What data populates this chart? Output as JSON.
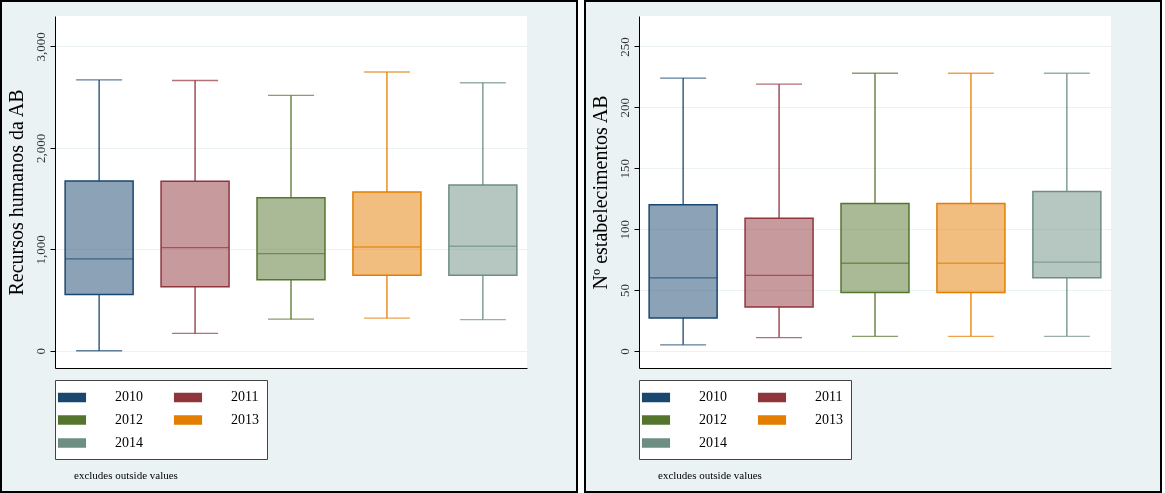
{
  "chart_data": [
    {
      "type": "box",
      "ylabel": "Recursos humanos da AB",
      "categories": [
        null
      ],
      "ylim": [
        -170,
        3300
      ],
      "yticks": [
        0,
        {
          "value": 1000,
          "label": "1,000"
        },
        {
          "value": 2000,
          "label": "2,000"
        },
        {
          "value": 3000,
          "label": "3,000"
        }
      ],
      "grid": "y",
      "legend": "bottom",
      "annotations": [
        "excludes outside values"
      ],
      "series": [
        {
          "name": "2010",
          "color": "#1a476f",
          "boxes": [
            {
              "low": 0,
              "q1": 555,
              "median": 906,
              "q3": 1673,
              "high": 2670
            }
          ]
        },
        {
          "name": "2011",
          "color": "#90353b",
          "boxes": [
            {
              "low": 172,
              "q1": 632,
              "median": 1016,
              "q3": 1670,
              "high": 2664
            }
          ]
        },
        {
          "name": "2012",
          "color": "#55752f",
          "boxes": [
            {
              "low": 311,
              "q1": 701,
              "median": 957,
              "q3": 1509,
              "high": 2517
            }
          ]
        },
        {
          "name": "2013",
          "color": "#e37e00",
          "boxes": [
            {
              "low": 322,
              "q1": 745,
              "median": 1023,
              "q3": 1564,
              "high": 2748
            }
          ]
        },
        {
          "name": "2014",
          "color": "#6e8e84",
          "boxes": [
            {
              "low": 307,
              "q1": 745,
              "median": 1030,
              "q3": 1633,
              "high": 2642
            }
          ]
        }
      ]
    },
    {
      "type": "box",
      "ylabel": "Nº estabelecimentos AB",
      "categories": [
        null
      ],
      "ylim": [
        -14,
        275
      ],
      "yticks": [
        0,
        50,
        100,
        150,
        200,
        250
      ],
      "grid": "y",
      "legend": "bottom",
      "annotations": [
        "excludes outside values"
      ],
      "series": [
        {
          "name": "2010",
          "color": "#1a476f",
          "boxes": [
            {
              "low": 5,
              "q1": 27,
              "median": 60,
              "q3": 120,
              "high": 224
            }
          ]
        },
        {
          "name": "2011",
          "color": "#90353b",
          "boxes": [
            {
              "low": 11,
              "q1": 36,
              "median": 62,
              "q3": 109,
              "high": 219
            }
          ]
        },
        {
          "name": "2012",
          "color": "#55752f",
          "boxes": [
            {
              "low": 12,
              "q1": 48,
              "median": 72,
              "q3": 121,
              "high": 228
            }
          ]
        },
        {
          "name": "2013",
          "color": "#e37e00",
          "boxes": [
            {
              "low": 12,
              "q1": 48,
              "median": 72,
              "q3": 121,
              "high": 228
            }
          ]
        },
        {
          "name": "2014",
          "color": "#6e8e84",
          "boxes": [
            {
              "low": 12,
              "q1": 60,
              "median": 73,
              "q3": 131,
              "high": 228
            }
          ]
        }
      ]
    }
  ]
}
